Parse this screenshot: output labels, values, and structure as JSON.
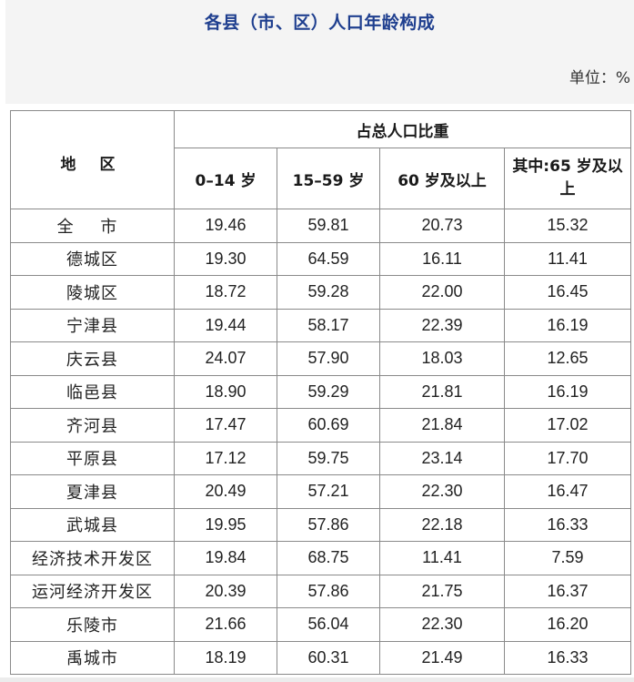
{
  "header": {
    "title": "各县（市、区）人口年龄构成",
    "unit": "单位：%"
  },
  "table": {
    "region_header": "地 区",
    "group_header": "占总人口比重",
    "columns": [
      "0–14 岁",
      "15–59 岁",
      "60 岁及以上",
      "其中:65 岁及以上"
    ],
    "rows": [
      {
        "region": "全 市",
        "values": [
          "19.46",
          "59.81",
          "20.73",
          "15.32"
        ]
      },
      {
        "region": "德城区",
        "values": [
          "19.30",
          "64.59",
          "16.11",
          "11.41"
        ]
      },
      {
        "region": "陵城区",
        "values": [
          "18.72",
          "59.28",
          "22.00",
          "16.45"
        ]
      },
      {
        "region": "宁津县",
        "values": [
          "19.44",
          "58.17",
          "22.39",
          "16.19"
        ]
      },
      {
        "region": "庆云县",
        "values": [
          "24.07",
          "57.90",
          "18.03",
          "12.65"
        ]
      },
      {
        "region": "临邑县",
        "values": [
          "18.90",
          "59.29",
          "21.81",
          "16.19"
        ]
      },
      {
        "region": "齐河县",
        "values": [
          "17.47",
          "60.69",
          "21.84",
          "17.02"
        ]
      },
      {
        "region": "平原县",
        "values": [
          "17.12",
          "59.75",
          "23.14",
          "17.70"
        ]
      },
      {
        "region": "夏津县",
        "values": [
          "20.49",
          "57.21",
          "22.30",
          "16.47"
        ]
      },
      {
        "region": "武城县",
        "values": [
          "19.95",
          "57.86",
          "22.18",
          "16.33"
        ]
      },
      {
        "region": "经济技术开发区",
        "values": [
          "19.84",
          "68.75",
          "11.41",
          "7.59"
        ]
      },
      {
        "region": "运河经济开发区",
        "values": [
          "20.39",
          "57.86",
          "21.75",
          "16.37"
        ]
      },
      {
        "region": "乐陵市",
        "values": [
          "21.66",
          "56.04",
          "22.30",
          "16.20"
        ]
      },
      {
        "region": "禹城市",
        "values": [
          "18.19",
          "60.31",
          "21.49",
          "16.33"
        ]
      }
    ]
  }
}
